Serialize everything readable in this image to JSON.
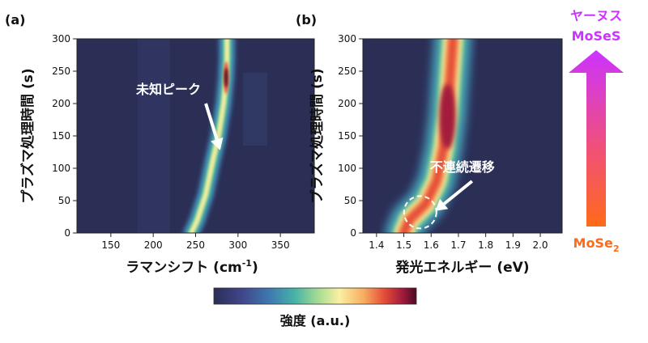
{
  "chart_data": [
    {
      "type": "heatmap",
      "panel_label": "(a)",
      "xlabel_main": "ラマンシフト (cm",
      "xlabel_sup": "-1",
      "xlabel_end": ")",
      "ylabel": "プラズマ処理時間 (s)",
      "xlim": [
        110,
        390
      ],
      "ylim": [
        0,
        300
      ],
      "xticks": [
        150,
        200,
        250,
        300,
        350
      ],
      "yticks": [
        0,
        50,
        100,
        150,
        200,
        250,
        300
      ],
      "ridges": [
        {
          "name": "main-peak",
          "points": [
            [
              245,
              0
            ],
            [
              252,
              20
            ],
            [
              262,
              60
            ],
            [
              270,
              110
            ],
            [
              277,
              150
            ],
            [
              283,
              200
            ],
            [
              286,
              240
            ],
            [
              287,
              270
            ],
            [
              287,
              300
            ]
          ],
          "peak_intensity_at_y": 240
        },
        {
          "name": "low-peak-1",
          "points": [
            [
              236,
              0
            ],
            [
              236,
              18
            ]
          ]
        },
        {
          "name": "low-peak-2",
          "points": [
            [
              244,
              0
            ],
            [
              244,
              16
            ]
          ]
        }
      ],
      "annotation": {
        "text": "未知ピーク",
        "arrow_tail": [
          262,
          200
        ],
        "arrow_head": [
          279,
          128
        ]
      }
    },
    {
      "type": "heatmap",
      "panel_label": "(b)",
      "xlabel": "発光エネルギー (eV)",
      "ylabel": "プラズマ処理時間 (s)",
      "xlim": [
        1.35,
        2.08
      ],
      "ylim": [
        0,
        300
      ],
      "xticks": [
        "1.4",
        "1.5",
        "1.6",
        "1.7",
        "1.8",
        "1.9",
        "2.0"
      ],
      "yticks": [
        0,
        50,
        100,
        150,
        200,
        250,
        300
      ],
      "ridges": [
        {
          "name": "emission-band",
          "points": [
            [
              1.5,
              0
            ],
            [
              1.52,
              20
            ],
            [
              1.58,
              45
            ],
            [
              1.62,
              80
            ],
            [
              1.645,
              130
            ],
            [
              1.66,
              180
            ],
            [
              1.67,
              240
            ],
            [
              1.68,
              300
            ]
          ],
          "peak_intensity_at_y": 180
        }
      ],
      "annotation": {
        "text": "不連続遷移",
        "circle_center": [
          1.56,
          32
        ],
        "arrow_tail": [
          1.75,
          80
        ],
        "arrow_head": [
          1.615,
          34
        ]
      }
    }
  ],
  "colorbar": {
    "label": "強度 (a.u.)",
    "colors": [
      "#2b2e55",
      "#40468a",
      "#3e7bb0",
      "#48b3a6",
      "#a9dd93",
      "#fbefa2",
      "#f6ad60",
      "#e54e38",
      "#a31b3c",
      "#4a0a26"
    ]
  },
  "side_arrow": {
    "top_text_1": "ヤーヌス",
    "top_text_2": "MoSeS",
    "bottom_text": "MoSe",
    "bottom_sub": "2",
    "top_color": "#cc33ff",
    "bottom_color": "#ff6a1a"
  }
}
